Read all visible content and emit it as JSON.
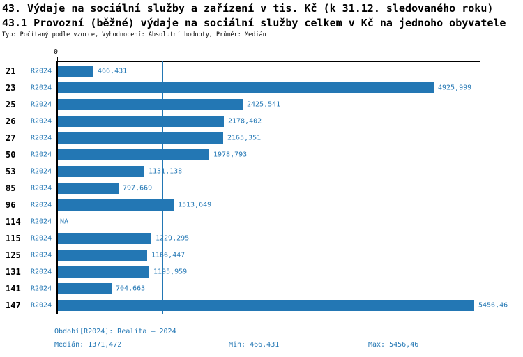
{
  "header": {
    "title": "43. Výdaje na sociální služby a zařízení v tis. Kč (k 31.12. sledovaného roku)",
    "subtitle": "43.1 Provozní (běžné) výdaje na sociální služby celkem v Kč na jednoho obyvatele",
    "meta": "Typ: Počítaný podle vzorce, Vyhodnocení: Absolutní hodnoty, Průměr: Medián"
  },
  "chart": {
    "zero_tick_label": "0",
    "na_label": "NA",
    "median_value": 1371.472,
    "colors": {
      "bar": "#2377b4",
      "blue_text": "#2377b4",
      "axis": "#000000"
    },
    "rows": [
      {
        "category": "21",
        "period": "R2024",
        "value": 466.431,
        "value_label": "466,431"
      },
      {
        "category": "23",
        "period": "R2024",
        "value": 4925.999,
        "value_label": "4925,999"
      },
      {
        "category": "25",
        "period": "R2024",
        "value": 2425.541,
        "value_label": "2425,541"
      },
      {
        "category": "26",
        "period": "R2024",
        "value": 2178.402,
        "value_label": "2178,402"
      },
      {
        "category": "27",
        "period": "R2024",
        "value": 2165.351,
        "value_label": "2165,351"
      },
      {
        "category": "50",
        "period": "R2024",
        "value": 1978.793,
        "value_label": "1978,793"
      },
      {
        "category": "53",
        "period": "R2024",
        "value": 1131.138,
        "value_label": "1131,138"
      },
      {
        "category": "85",
        "period": "R2024",
        "value": 797.669,
        "value_label": "797,669"
      },
      {
        "category": "96",
        "period": "R2024",
        "value": 1513.649,
        "value_label": "1513,649"
      },
      {
        "category": "114",
        "period": "R2024",
        "value": null,
        "value_label": "NA"
      },
      {
        "category": "115",
        "period": "R2024",
        "value": 1229.295,
        "value_label": "1229,295"
      },
      {
        "category": "125",
        "period": "R2024",
        "value": 1166.447,
        "value_label": "1166,447"
      },
      {
        "category": "131",
        "period": "R2024",
        "value": 1195.959,
        "value_label": "1195,959"
      },
      {
        "category": "141",
        "period": "R2024",
        "value": 704.663,
        "value_label": "704,663"
      },
      {
        "category": "147",
        "period": "R2024",
        "value": 5456.46,
        "value_label": "5456,46"
      }
    ]
  },
  "footer": {
    "period_line": "Období[R2024]: Realita – 2024",
    "median": "Medián: 1371,472",
    "min": "Min: 466,431",
    "max": "Max: 5456,46"
  },
  "chart_data": {
    "type": "bar",
    "orientation": "horizontal",
    "title": "43. Výdaje na sociální služby a zařízení v tis. Kč (k 31.12. sledovaného roku)",
    "subtitle": "43.1 Provozní (běžné) výdaje na sociální služby celkem v Kč na jednoho obyvatele",
    "series_name": "R2024",
    "categories": [
      "21",
      "23",
      "25",
      "26",
      "27",
      "50",
      "53",
      "85",
      "96",
      "114",
      "115",
      "125",
      "131",
      "141",
      "147"
    ],
    "values": [
      466.431,
      4925.999,
      2425.541,
      2178.402,
      2165.351,
      1978.793,
      1131.138,
      797.669,
      1513.649,
      null,
      1229.295,
      1166.447,
      1195.959,
      704.663,
      5456.46
    ],
    "median": 1371.472,
    "min": 466.431,
    "max": 5456.46,
    "xlim": [
      0,
      5520
    ],
    "x_tick_labels": [
      "0"
    ],
    "grid": false,
    "annotations": [
      "median reference line at 1371,472"
    ],
    "legend_position": "none"
  }
}
